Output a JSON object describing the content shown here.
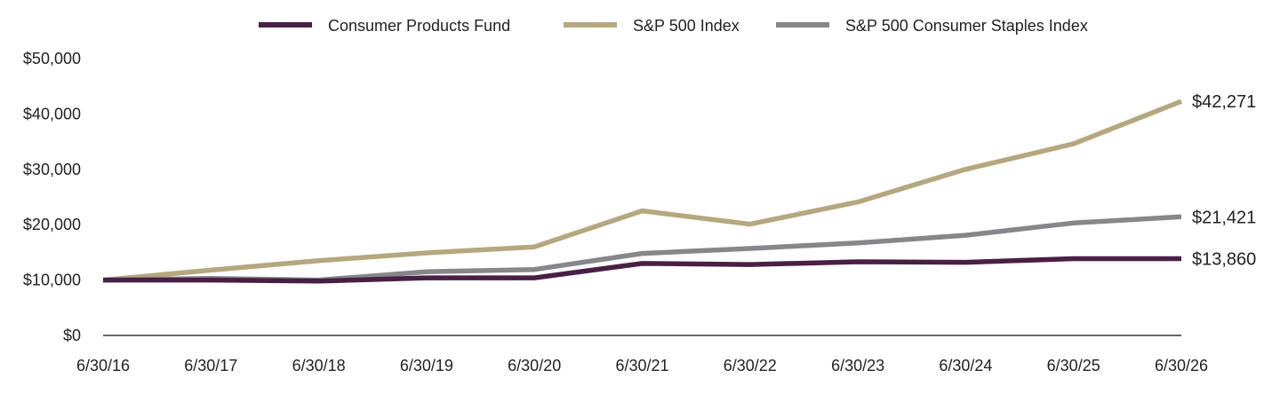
{
  "chart_data": {
    "type": "line",
    "title": "",
    "xlabel": "",
    "ylabel": "",
    "x": [
      "6/30/16",
      "6/30/17",
      "6/30/18",
      "6/30/19",
      "6/30/20",
      "6/30/21",
      "6/30/22",
      "6/30/23",
      "6/30/24",
      "6/30/25",
      "6/30/26"
    ],
    "ylim": [
      0,
      50000
    ],
    "yticks": [
      {
        "value": 0,
        "label": "$0"
      },
      {
        "value": 10000,
        "label": "$10,000"
      },
      {
        "value": 20000,
        "label": "$20,000"
      },
      {
        "value": 30000,
        "label": "$30,000"
      },
      {
        "value": 40000,
        "label": "$40,000"
      },
      {
        "value": 50000,
        "label": "$50,000"
      }
    ],
    "grid": false,
    "legend_position": "top-center",
    "series": [
      {
        "name": "Consumer Products Fund",
        "color": "#4a1f45",
        "values": [
          10000,
          10000,
          9800,
          10400,
          10400,
          13000,
          12800,
          13300,
          13200,
          13860,
          13860
        ],
        "end_label": "$13,860"
      },
      {
        "name": "S&P 500 Index",
        "color": "#b5a77e",
        "values": [
          10000,
          11800,
          13500,
          14900,
          16000,
          22500,
          20100,
          24100,
          30000,
          34600,
          42271
        ],
        "end_label": "$42,271"
      },
      {
        "name": "S&P 500 Consumer Staples Index",
        "color": "#87868a",
        "values": [
          10000,
          10300,
          10000,
          11500,
          11900,
          14800,
          15700,
          16700,
          18100,
          20300,
          21421
        ],
        "end_label": "$21,421"
      }
    ]
  }
}
